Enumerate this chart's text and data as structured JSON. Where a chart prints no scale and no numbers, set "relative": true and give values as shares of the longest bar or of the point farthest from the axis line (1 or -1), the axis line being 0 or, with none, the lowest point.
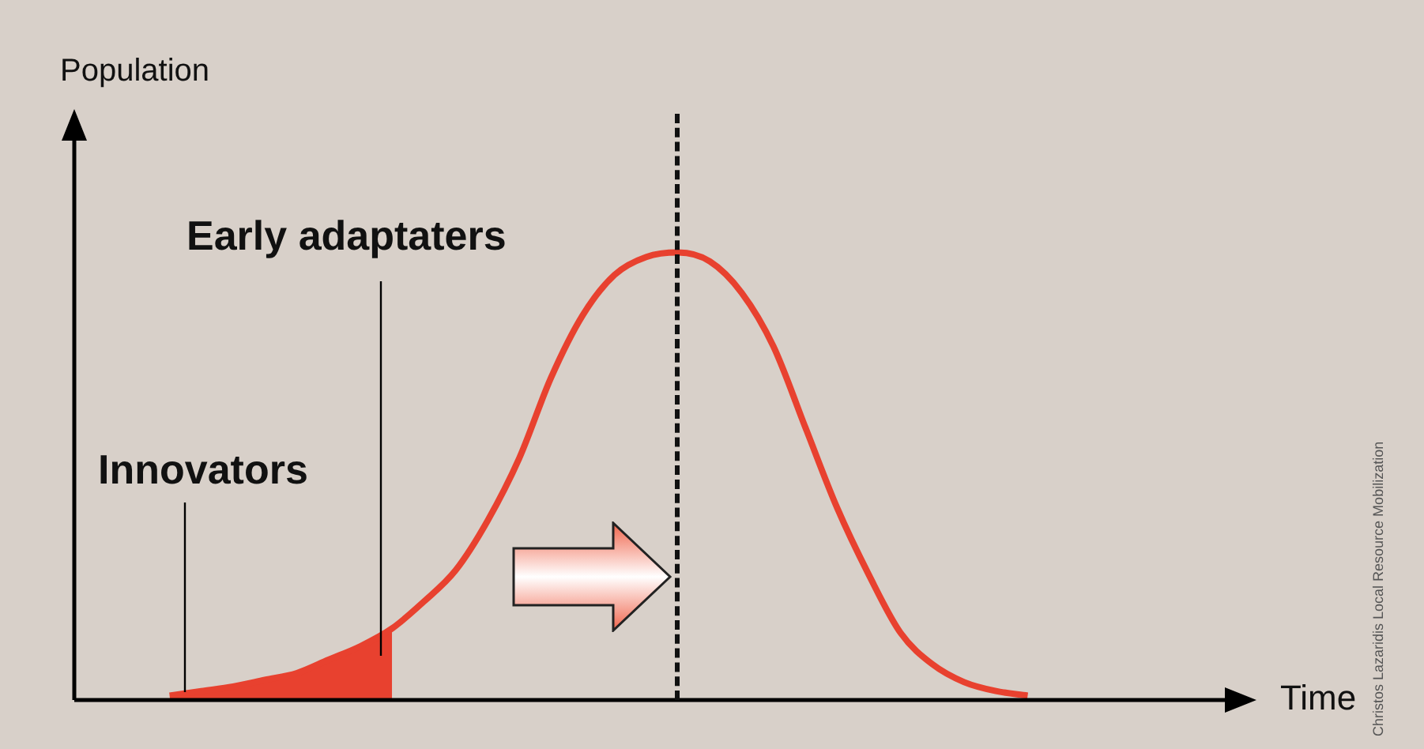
{
  "chart_data": {
    "type": "line",
    "relative": true,
    "xlabel": "Time",
    "legend": false,
    "marker": "none",
    "categories": [
      null,
      null,
      null,
      null,
      null,
      null,
      null,
      null,
      null,
      null,
      null,
      null,
      null,
      null,
      null,
      null,
      null,
      null,
      null,
      null,
      null,
      null,
      null,
      null,
      null,
      null,
      null,
      null,
      null,
      null,
      null,
      null,
      null,
      null,
      null,
      null,
      null,
      null
    ],
    "series": [
      {
        "type": "line",
        "color": "#e8412f",
        "values": [
          null,
          null,
          null,
          0.01,
          0.02,
          0.03,
          0.045,
          0.06,
          0.09,
          0.12,
          0.16,
          0.22,
          0.29,
          0.4,
          0.54,
          0.72,
          0.86,
          0.95,
          0.99,
          1,
          0.98,
          0.91,
          0.79,
          0.61,
          0.43,
          0.28,
          0.15,
          0.08,
          0.04,
          0.02,
          0.01,
          null,
          null,
          null,
          null,
          null,
          null,
          null
        ]
      },
      {
        "type": "area",
        "color": "#e8412f",
        "values": [
          null,
          null,
          null,
          0.01,
          0.02,
          0.03,
          0.045,
          0.06,
          0.09,
          0.12,
          0.16,
          null,
          null,
          null,
          null,
          null,
          null,
          null,
          null,
          null,
          null,
          null,
          null,
          null,
          null,
          null,
          null,
          null,
          null,
          null,
          null,
          null,
          null,
          null,
          null,
          null,
          null,
          null
        ]
      }
    ],
    "annotations": [
      "Population",
      "Innovators",
      "Early adaptaters",
      "Christos Lazaridis Local Resource Mobilization"
    ]
  }
}
